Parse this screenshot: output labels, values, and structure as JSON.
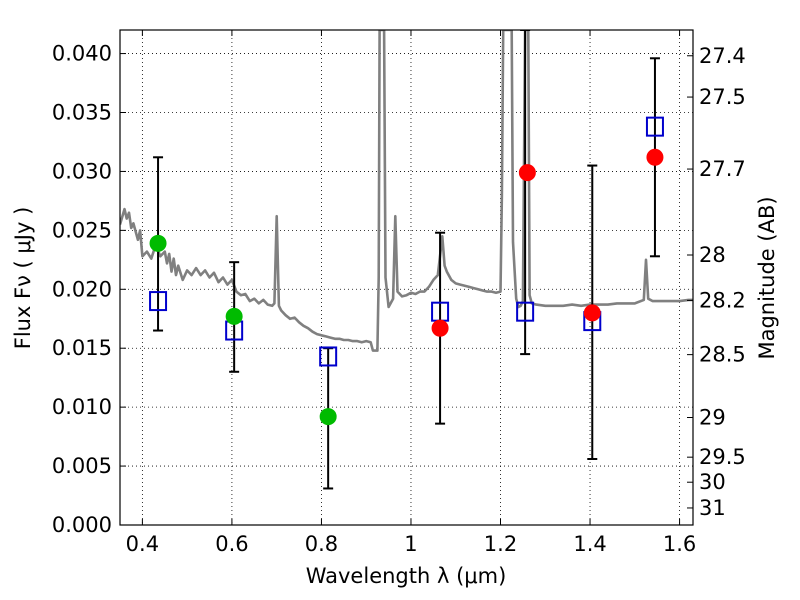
{
  "chart_data": {
    "type": "scatter",
    "xlabel": "Wavelength  λ (μm)",
    "ylabel": "Flux  Fν  ( μJy )",
    "y2label": "Magnitude (AB)",
    "xlim": [
      0.35,
      1.63
    ],
    "ylim": [
      0.0,
      0.042
    ],
    "grid": true,
    "x_ticks": [
      {
        "v": 0.4,
        "label": "0.4"
      },
      {
        "v": 0.6,
        "label": "0.6"
      },
      {
        "v": 0.8,
        "label": "0.8"
      },
      {
        "v": 1.0,
        "label": "1"
      },
      {
        "v": 1.2,
        "label": "1.2"
      },
      {
        "v": 1.4,
        "label": "1.4"
      },
      {
        "v": 1.6,
        "label": "1.6"
      }
    ],
    "y_ticks": [
      {
        "v": 0.0,
        "label": "0.000"
      },
      {
        "v": 0.005,
        "label": "0.005"
      },
      {
        "v": 0.01,
        "label": "0.010"
      },
      {
        "v": 0.015,
        "label": "0.015"
      },
      {
        "v": 0.02,
        "label": "0.020"
      },
      {
        "v": 0.025,
        "label": "0.025"
      },
      {
        "v": 0.03,
        "label": "0.030"
      },
      {
        "v": 0.035,
        "label": "0.035"
      },
      {
        "v": 0.04,
        "label": "0.040"
      }
    ],
    "y2_ticks": [
      {
        "mag": 27.4,
        "label": "27.4"
      },
      {
        "mag": 27.5,
        "label": "27.5"
      },
      {
        "mag": 27.7,
        "label": "27.7"
      },
      {
        "mag": 28.0,
        "label": "28"
      },
      {
        "mag": 28.2,
        "label": "28.2"
      },
      {
        "mag": 28.5,
        "label": "28.5"
      },
      {
        "mag": 29.0,
        "label": "29"
      },
      {
        "mag": 29.5,
        "label": "29.5"
      },
      {
        "mag": 30.0,
        "label": "30"
      },
      {
        "mag": 31.0,
        "label": "31"
      }
    ],
    "series": [
      {
        "kind": "line",
        "color": "#808080",
        "points": [
          [
            0.35,
            0.0255
          ],
          [
            0.36,
            0.0268
          ],
          [
            0.365,
            0.026
          ],
          [
            0.37,
            0.0265
          ],
          [
            0.375,
            0.0252
          ],
          [
            0.38,
            0.0256
          ],
          [
            0.39,
            0.0242
          ],
          [
            0.395,
            0.025
          ],
          [
            0.4,
            0.0228
          ],
          [
            0.41,
            0.0232
          ],
          [
            0.42,
            0.0226
          ],
          [
            0.43,
            0.0238
          ],
          [
            0.44,
            0.0228
          ],
          [
            0.45,
            0.0232
          ],
          [
            0.455,
            0.0222
          ],
          [
            0.46,
            0.023
          ],
          [
            0.465,
            0.0215
          ],
          [
            0.47,
            0.0226
          ],
          [
            0.475,
            0.0212
          ],
          [
            0.48,
            0.022
          ],
          [
            0.49,
            0.0208
          ],
          [
            0.5,
            0.0216
          ],
          [
            0.51,
            0.0212
          ],
          [
            0.52,
            0.0218
          ],
          [
            0.53,
            0.0212
          ],
          [
            0.54,
            0.0216
          ],
          [
            0.55,
            0.021
          ],
          [
            0.56,
            0.0214
          ],
          [
            0.57,
            0.0206
          ],
          [
            0.58,
            0.021
          ],
          [
            0.59,
            0.0204
          ],
          [
            0.6,
            0.0208
          ],
          [
            0.61,
            0.0198
          ],
          [
            0.62,
            0.0195
          ],
          [
            0.63,
            0.0196
          ],
          [
            0.64,
            0.019
          ],
          [
            0.65,
            0.0192
          ],
          [
            0.66,
            0.0188
          ],
          [
            0.67,
            0.0191
          ],
          [
            0.68,
            0.0187
          ],
          [
            0.69,
            0.0186
          ],
          [
            0.695,
            0.0188
          ],
          [
            0.7,
            0.0262
          ],
          [
            0.705,
            0.0186
          ],
          [
            0.71,
            0.0182
          ],
          [
            0.72,
            0.0178
          ],
          [
            0.73,
            0.0175
          ],
          [
            0.74,
            0.0176
          ],
          [
            0.75,
            0.0172
          ],
          [
            0.76,
            0.0169
          ],
          [
            0.77,
            0.0167
          ],
          [
            0.78,
            0.0164
          ],
          [
            0.79,
            0.0162
          ],
          [
            0.8,
            0.0161
          ],
          [
            0.81,
            0.016
          ],
          [
            0.82,
            0.0159
          ],
          [
            0.83,
            0.0158
          ],
          [
            0.84,
            0.0158
          ],
          [
            0.85,
            0.0157
          ],
          [
            0.86,
            0.0157
          ],
          [
            0.87,
            0.0156
          ],
          [
            0.88,
            0.0156
          ],
          [
            0.89,
            0.0155
          ],
          [
            0.9,
            0.0156
          ],
          [
            0.91,
            0.0155
          ],
          [
            0.915,
            0.0148
          ],
          [
            0.925,
            0.0148
          ],
          [
            0.928,
            0.021
          ],
          [
            0.93,
            0.042
          ],
          [
            0.94,
            0.042
          ],
          [
            0.943,
            0.021
          ],
          [
            0.95,
            0.0185
          ],
          [
            0.96,
            0.0192
          ],
          [
            0.965,
            0.0262
          ],
          [
            0.97,
            0.0198
          ],
          [
            0.98,
            0.0194
          ],
          [
            0.99,
            0.0195
          ],
          [
            1.0,
            0.0197
          ],
          [
            1.01,
            0.0196
          ],
          [
            1.02,
            0.0198
          ],
          [
            1.03,
            0.0198
          ],
          [
            1.04,
            0.0202
          ],
          [
            1.05,
            0.0208
          ],
          [
            1.06,
            0.0212
          ],
          [
            1.07,
            0.0245
          ],
          [
            1.075,
            0.022
          ],
          [
            1.08,
            0.0215
          ],
          [
            1.09,
            0.0208
          ],
          [
            1.1,
            0.0205
          ],
          [
            1.11,
            0.0204
          ],
          [
            1.12,
            0.0203
          ],
          [
            1.13,
            0.0202
          ],
          [
            1.14,
            0.0201
          ],
          [
            1.15,
            0.02
          ],
          [
            1.16,
            0.0199
          ],
          [
            1.17,
            0.0198
          ],
          [
            1.18,
            0.0198
          ],
          [
            1.19,
            0.0197
          ],
          [
            1.2,
            0.0198
          ],
          [
            1.203,
            0.028
          ],
          [
            1.206,
            0.042
          ],
          [
            1.225,
            0.042
          ],
          [
            1.228,
            0.024
          ],
          [
            1.235,
            0.0192
          ],
          [
            1.24,
            0.0185
          ],
          [
            1.245,
            0.0186
          ],
          [
            1.25,
            0.019
          ],
          [
            1.255,
            0.042
          ],
          [
            1.262,
            0.042
          ],
          [
            1.265,
            0.0195
          ],
          [
            1.27,
            0.0188
          ],
          [
            1.28,
            0.0187
          ],
          [
            1.3,
            0.0186
          ],
          [
            1.32,
            0.0186
          ],
          [
            1.34,
            0.0186
          ],
          [
            1.36,
            0.0187
          ],
          [
            1.38,
            0.0186
          ],
          [
            1.4,
            0.0187
          ],
          [
            1.42,
            0.0187
          ],
          [
            1.44,
            0.0187
          ],
          [
            1.46,
            0.0188
          ],
          [
            1.48,
            0.0188
          ],
          [
            1.5,
            0.0188
          ],
          [
            1.52,
            0.0191
          ],
          [
            1.525,
            0.0225
          ],
          [
            1.53,
            0.0192
          ],
          [
            1.54,
            0.019
          ],
          [
            1.56,
            0.019
          ],
          [
            1.58,
            0.019
          ],
          [
            1.6,
            0.019
          ],
          [
            1.62,
            0.0191
          ],
          [
            1.63,
            0.0191
          ]
        ]
      },
      {
        "kind": "errorbar",
        "marker": "open-square",
        "color": "#0000cc",
        "points": [
          {
            "x": 0.435,
            "y": 0.019,
            "lo": 0.0165,
            "hi": 0.0312
          },
          {
            "x": 0.605,
            "y": 0.0165,
            "lo": 0.013,
            "hi": 0.0223
          },
          {
            "x": 0.815,
            "y": 0.0143,
            "lo": 0.0031,
            "hi": 0.015
          },
          {
            "x": 1.065,
            "y": 0.0181,
            "lo": 0.0086,
            "hi": 0.0248
          },
          {
            "x": 1.255,
            "y": 0.0181,
            "lo": 0.0145,
            "hi": 0.042
          },
          {
            "x": 1.405,
            "y": 0.0173,
            "lo": 0.0056,
            "hi": 0.0305
          },
          {
            "x": 1.545,
            "y": 0.0338,
            "lo": 0.0228,
            "hi": 0.0396
          }
        ]
      },
      {
        "kind": "scatter",
        "marker": "filled-circle",
        "color": "#00bb00",
        "points": [
          {
            "x": 0.435,
            "y": 0.0239
          },
          {
            "x": 0.605,
            "y": 0.0177
          },
          {
            "x": 0.815,
            "y": 0.0092
          }
        ]
      },
      {
        "kind": "scatter",
        "marker": "filled-circle",
        "color": "#ff0000",
        "points": [
          {
            "x": 1.065,
            "y": 0.0167
          },
          {
            "x": 1.26,
            "y": 0.0299
          },
          {
            "x": 1.405,
            "y": 0.018
          },
          {
            "x": 1.545,
            "y": 0.0312
          }
        ]
      }
    ]
  }
}
